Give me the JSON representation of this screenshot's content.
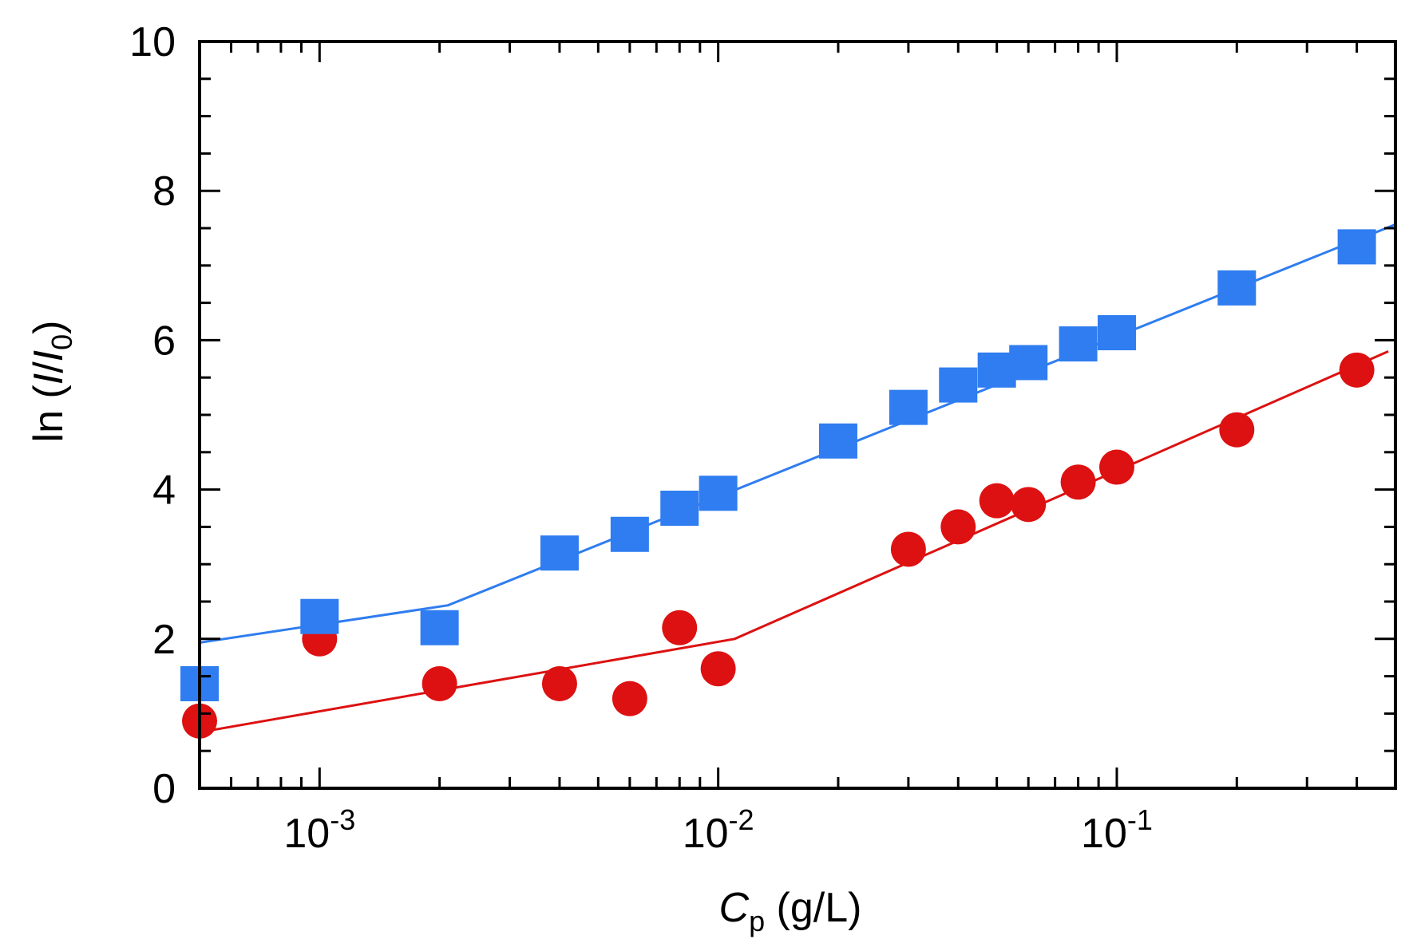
{
  "chart_data": {
    "type": "scatter",
    "title": "",
    "xlabel": {
      "main": "C",
      "sub": "p",
      "rest": " (g/L)"
    },
    "ylabel": {
      "prefix": "ln (",
      "i1": "I",
      "slash": "/",
      "i2": "I",
      "sub": "0",
      "suffix": ")"
    },
    "xscale": "log",
    "xlim": [
      0.0005,
      0.5
    ],
    "ylim": [
      0,
      10
    ],
    "x_ticks": [
      {
        "value": 0.001,
        "base": "10",
        "exp": "-3"
      },
      {
        "value": 0.01,
        "base": "10",
        "exp": "-2"
      },
      {
        "value": 0.1,
        "base": "10",
        "exp": "-1"
      }
    ],
    "y_ticks": [
      "0",
      "2",
      "4",
      "6",
      "8",
      "10"
    ],
    "series": [
      {
        "name": "blue squares",
        "marker": "square",
        "color": "#2f7df0",
        "points": [
          [
            0.0005,
            1.4
          ],
          [
            0.001,
            2.3
          ],
          [
            0.002,
            2.15
          ],
          [
            0.004,
            3.15
          ],
          [
            0.006,
            3.4
          ],
          [
            0.008,
            3.75
          ],
          [
            0.01,
            3.95
          ],
          [
            0.02,
            4.65
          ],
          [
            0.03,
            5.1
          ],
          [
            0.04,
            5.4
          ],
          [
            0.05,
            5.6
          ],
          [
            0.06,
            5.7
          ],
          [
            0.08,
            5.95
          ],
          [
            0.1,
            6.1
          ],
          [
            0.2,
            6.7
          ],
          [
            0.4,
            7.25
          ]
        ],
        "fit_line": [
          [
            0.0005,
            1.95
          ],
          [
            0.0021,
            2.45
          ],
          [
            0.5,
            7.55
          ]
        ]
      },
      {
        "name": "red circles",
        "marker": "circle",
        "color": "#dd1111",
        "points": [
          [
            0.0005,
            0.9
          ],
          [
            0.001,
            2.0
          ],
          [
            0.002,
            1.4
          ],
          [
            0.004,
            1.4
          ],
          [
            0.006,
            1.2
          ],
          [
            0.008,
            2.15
          ],
          [
            0.01,
            1.6
          ],
          [
            0.03,
            3.2
          ],
          [
            0.04,
            3.5
          ],
          [
            0.05,
            3.85
          ],
          [
            0.06,
            3.8
          ],
          [
            0.08,
            4.1
          ],
          [
            0.1,
            4.3
          ],
          [
            0.2,
            4.8
          ],
          [
            0.4,
            5.6
          ]
        ],
        "fit_line": [
          [
            0.0005,
            0.75
          ],
          [
            0.011,
            2.0
          ],
          [
            0.48,
            5.85
          ]
        ]
      }
    ]
  }
}
